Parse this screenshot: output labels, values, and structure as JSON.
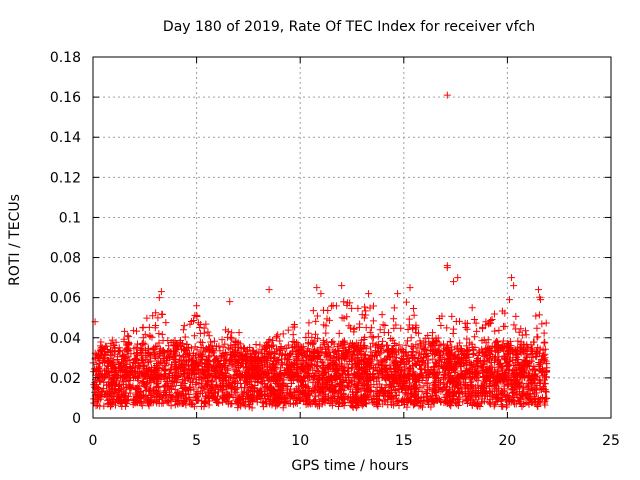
{
  "chart_data": {
    "type": "scatter",
    "title": "Day 180 of 2019, Rate Of TEC Index for receiver vfch",
    "xlabel": "GPS time / hours",
    "ylabel": "ROTI / TECUs",
    "xlim": [
      0,
      25
    ],
    "ylim": [
      0,
      0.18
    ],
    "xticks": [
      0,
      5,
      10,
      15,
      20,
      25
    ],
    "xtick_labels": [
      "0",
      "5",
      "10",
      "15",
      "20",
      "25"
    ],
    "yticks": [
      0,
      0.02,
      0.04,
      0.06,
      0.08,
      0.1,
      0.12,
      0.14,
      0.16,
      0.18
    ],
    "ytick_labels": [
      "0",
      "0.02",
      "0.04",
      "0.06",
      "0.08",
      "0.1",
      "0.12",
      "0.14",
      "0.16",
      "0.18"
    ],
    "grid": true,
    "marker": "+",
    "color": "#ff0000",
    "x_data_range": [
      0,
      21.9
    ],
    "bulk_y_range": [
      0.005,
      0.035
    ],
    "series": [
      {
        "name": "ROTI",
        "notable_points": [
          {
            "x": 17.1,
            "y": 0.161
          },
          {
            "x": 17.1,
            "y": 0.076
          },
          {
            "x": 17.1,
            "y": 0.075
          },
          {
            "x": 17.6,
            "y": 0.07
          },
          {
            "x": 17.4,
            "y": 0.068
          },
          {
            "x": 20.2,
            "y": 0.07
          },
          {
            "x": 20.3,
            "y": 0.066
          },
          {
            "x": 8.5,
            "y": 0.064
          },
          {
            "x": 3.3,
            "y": 0.063
          },
          {
            "x": 3.2,
            "y": 0.06
          },
          {
            "x": 6.6,
            "y": 0.058
          },
          {
            "x": 10.8,
            "y": 0.065
          },
          {
            "x": 11.0,
            "y": 0.062
          },
          {
            "x": 12.0,
            "y": 0.066
          },
          {
            "x": 13.3,
            "y": 0.062
          },
          {
            "x": 14.7,
            "y": 0.062
          },
          {
            "x": 15.3,
            "y": 0.065
          },
          {
            "x": 20.1,
            "y": 0.059
          },
          {
            "x": 21.5,
            "y": 0.064
          },
          {
            "x": 21.6,
            "y": 0.059
          },
          {
            "x": 0.1,
            "y": 0.048
          },
          {
            "x": 5.0,
            "y": 0.056
          },
          {
            "x": 18.3,
            "y": 0.055
          }
        ],
        "envelope": [
          {
            "x": 0.0,
            "y": 0.048
          },
          {
            "x": 0.5,
            "y": 0.035
          },
          {
            "x": 1.0,
            "y": 0.045
          },
          {
            "x": 2.0,
            "y": 0.044
          },
          {
            "x": 3.0,
            "y": 0.055
          },
          {
            "x": 3.3,
            "y": 0.063
          },
          {
            "x": 4.0,
            "y": 0.04
          },
          {
            "x": 5.0,
            "y": 0.056
          },
          {
            "x": 6.0,
            "y": 0.04
          },
          {
            "x": 6.6,
            "y": 0.058
          },
          {
            "x": 7.5,
            "y": 0.028
          },
          {
            "x": 8.5,
            "y": 0.04
          },
          {
            "x": 9.5,
            "y": 0.045
          },
          {
            "x": 10.8,
            "y": 0.055
          },
          {
            "x": 12.0,
            "y": 0.058
          },
          {
            "x": 13.3,
            "y": 0.058
          },
          {
            "x": 14.7,
            "y": 0.055
          },
          {
            "x": 15.3,
            "y": 0.06
          },
          {
            "x": 16.0,
            "y": 0.045
          },
          {
            "x": 17.1,
            "y": 0.058
          },
          {
            "x": 18.0,
            "y": 0.05
          },
          {
            "x": 19.0,
            "y": 0.05
          },
          {
            "x": 20.0,
            "y": 0.058
          },
          {
            "x": 21.0,
            "y": 0.045
          },
          {
            "x": 21.5,
            "y": 0.062
          },
          {
            "x": 21.9,
            "y": 0.053
          }
        ]
      }
    ]
  }
}
